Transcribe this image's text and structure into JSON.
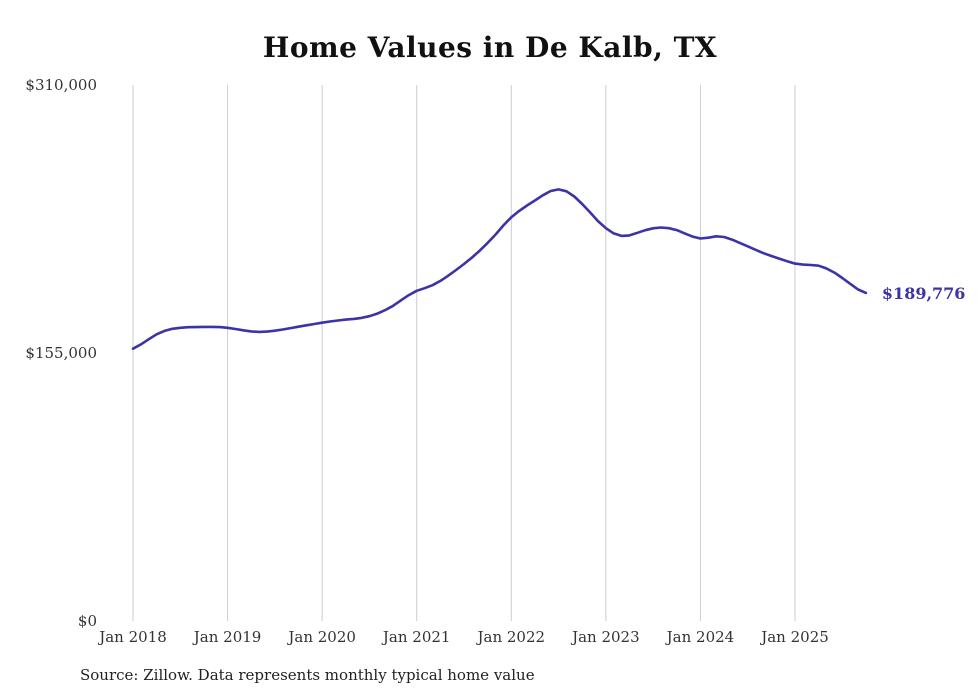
{
  "chart_data": {
    "type": "line",
    "title": "Home Values in De Kalb, TX",
    "xlabel": "",
    "ylabel": "",
    "frequency": "monthly",
    "x_start": "2018-01",
    "x_end": "2025-10",
    "values": [
      157500,
      160000,
      163000,
      165800,
      167800,
      169000,
      169600,
      169900,
      170000,
      170100,
      170100,
      170000,
      169600,
      168900,
      168100,
      167500,
      167200,
      167400,
      167900,
      168600,
      169400,
      170200,
      171000,
      171800,
      172500,
      173200,
      173800,
      174300,
      174700,
      175300,
      176300,
      177800,
      179800,
      182300,
      185500,
      188500,
      191000,
      192500,
      194200,
      196700,
      199700,
      203000,
      206500,
      210200,
      214200,
      218700,
      223500,
      228800,
      233500,
      237200,
      240300,
      243200,
      246200,
      248700,
      249600,
      248500,
      245500,
      241200,
      236300,
      231300,
      227200,
      224200,
      222700,
      223000,
      224500,
      226000,
      227100,
      227600,
      227200,
      226100,
      224200,
      222300,
      221200,
      221700,
      222500,
      222100,
      220600,
      218700,
      216700,
      214700,
      212700,
      211100,
      209600,
      208100,
      206700,
      206100,
      205900,
      205500,
      203900,
      201500,
      198400,
      195000,
      191700,
      189776
    ],
    "x_tick_labels": [
      "Jan 2018",
      "Jan 2019",
      "Jan 2020",
      "Jan 2021",
      "Jan 2022",
      "Jan 2023",
      "Jan 2024",
      "Jan 2025"
    ],
    "x_tick_month_indices": [
      0,
      12,
      24,
      36,
      48,
      60,
      72,
      84
    ],
    "y_ticks": [
      {
        "value": 0,
        "label": "$0"
      },
      {
        "value": 155000,
        "label": "$155,000"
      },
      {
        "value": 310000,
        "label": "$310,000"
      }
    ],
    "ylim": [
      0,
      310000
    ],
    "end_label": "$189,776",
    "line_color": "#3b33a6",
    "grid": "vertical-only",
    "legend": "none"
  },
  "source": "Source: Zillow. Data represents monthly typical home value"
}
